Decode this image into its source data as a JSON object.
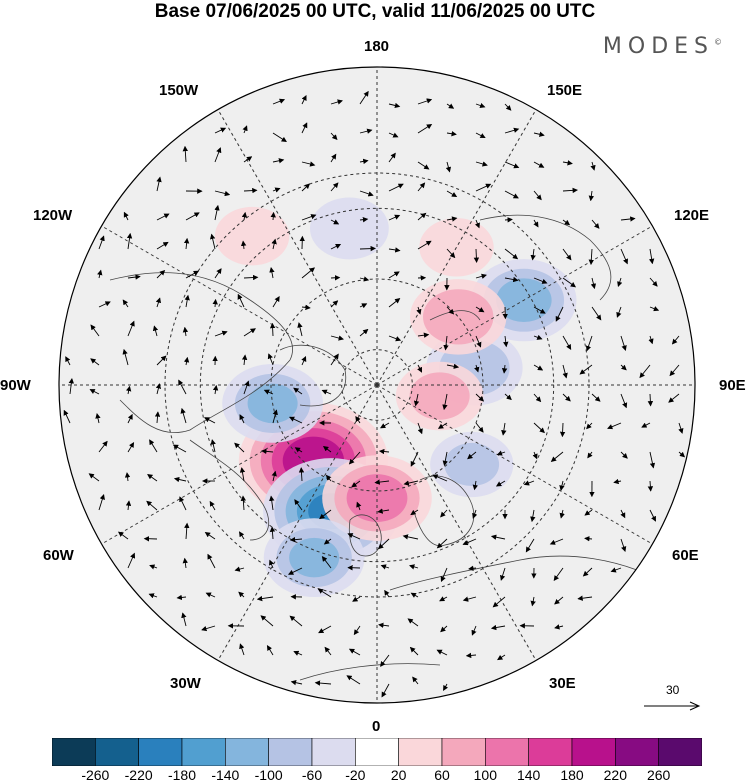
{
  "title": "Base 07/06/2025 00 UTC, valid 11/06/2025 00 UTC",
  "brand": {
    "name": "MODES",
    "mark": "©"
  },
  "longitude_labels": {
    "lon_180": "180",
    "lon_150e": "150E",
    "lon_120e": "120E",
    "lon_90e": "90E",
    "lon_60e": "60E",
    "lon_30e": "30E",
    "lon_0": "0",
    "lon_30w": "30W",
    "lon_60w": "60W",
    "lon_90w": "90W",
    "lon_120w": "120W",
    "lon_150w": "150W"
  },
  "wind_scale": {
    "label": "30"
  },
  "colorbar": {
    "ticks": [
      "-260",
      "-220",
      "-180",
      "-140",
      "-100",
      "-60",
      "-20",
      "20",
      "60",
      "100",
      "140",
      "180",
      "220",
      "260"
    ],
    "colors": [
      "#0c3b57",
      "#14608e",
      "#2a80bd",
      "#519fd0",
      "#84b5dd",
      "#b5c3e4",
      "#dcdcef",
      "#ffffff",
      "#fad7da",
      "#f4a8bc",
      "#ec74ab",
      "#dc3c99",
      "#b8118c",
      "#870b82",
      "#5a0a6d"
    ]
  },
  "map": {
    "projection": "north-polar-stereographic",
    "land_color": "#efefef",
    "anomaly_centers": [
      {
        "lon": -40,
        "lat": 62,
        "value": 230
      },
      {
        "lon": -20,
        "lat": 52,
        "value": -200
      },
      {
        "lon": 0,
        "lat": 58,
        "value": 140
      },
      {
        "lon": -20,
        "lat": 38,
        "value": -120
      },
      {
        "lon": -80,
        "lat": 60,
        "value": -120
      },
      {
        "lon": 100,
        "lat": 62,
        "value": -110
      },
      {
        "lon": 120,
        "lat": 42,
        "value": -130
      },
      {
        "lon": 130,
        "lat": 60,
        "value": 110
      },
      {
        "lon": 80,
        "lat": 72,
        "value": 90
      },
      {
        "lon": 50,
        "lat": 55,
        "value": -80
      },
      {
        "lon": -140,
        "lat": 35,
        "value": 60
      },
      {
        "lon": -170,
        "lat": 45,
        "value": -70
      },
      {
        "lon": 150,
        "lat": 45,
        "value": 60
      }
    ]
  }
}
